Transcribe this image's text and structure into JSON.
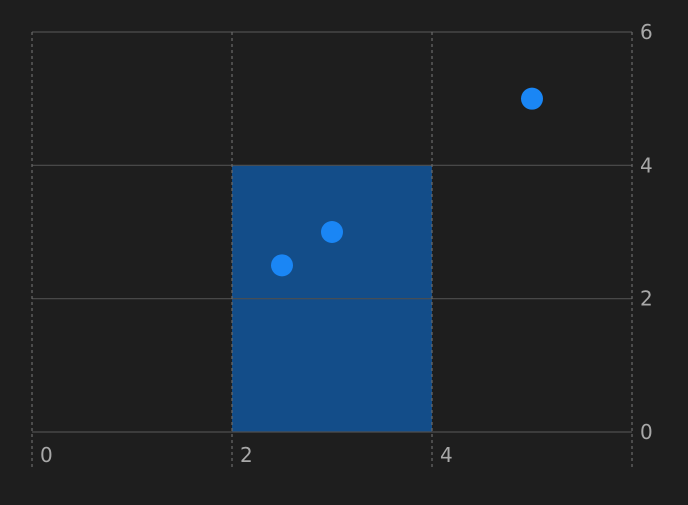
{
  "chart_data": {
    "type": "scatter",
    "title": "",
    "xlabel": "",
    "ylabel": "",
    "xlim": [
      0,
      6
    ],
    "ylim": [
      0,
      6
    ],
    "x_ticks": [
      "0",
      "2",
      "4"
    ],
    "y_ticks": [
      "0",
      "2",
      "4",
      "6"
    ],
    "y_axis_position": "right",
    "grid": true,
    "highlight_region": {
      "x0": 2,
      "x1": 4,
      "y0": 0,
      "y1": 4
    },
    "points": [
      {
        "x": 2.5,
        "y": 2.5
      },
      {
        "x": 3.0,
        "y": 3.0
      },
      {
        "x": 5.0,
        "y": 5.0
      }
    ],
    "colors": {
      "background": "#1e1e1e",
      "point": "#1a86f5",
      "region": "#134d89",
      "grid_solid": "#4e4e4e",
      "grid_dashed": "#6a6a6a",
      "tick_label": "#a8a8a8"
    }
  }
}
